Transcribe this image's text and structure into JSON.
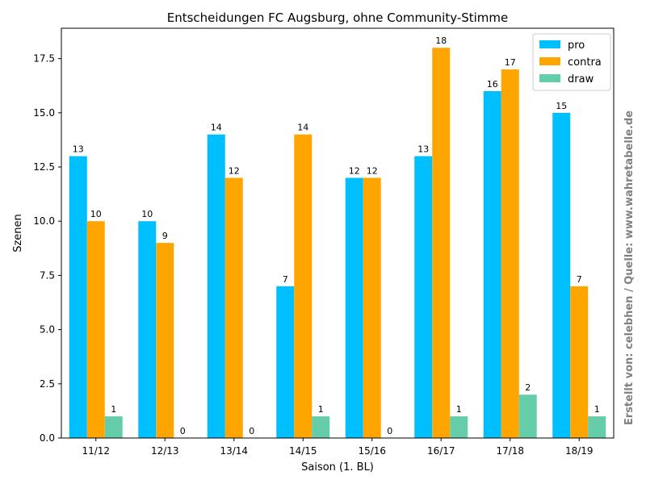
{
  "chart_data": {
    "type": "bar",
    "title": "Entscheidungen FC Augsburg, ohne Community-Stimme",
    "xlabel": "Saison (1. BL)",
    "ylabel": "Szenen",
    "ylim": [
      0,
      18.9
    ],
    "yticks": [
      "0.0",
      "2.5",
      "5.0",
      "7.5",
      "10.0",
      "12.5",
      "15.0",
      "17.5"
    ],
    "categories": [
      "11/12",
      "12/13",
      "13/14",
      "14/15",
      "15/16",
      "16/17",
      "17/18",
      "18/19"
    ],
    "series": [
      {
        "name": "pro",
        "color": "#00bfff",
        "values": [
          13,
          10,
          14,
          7,
          12,
          13,
          16,
          15
        ]
      },
      {
        "name": "contra",
        "color": "#ffa500",
        "values": [
          10,
          9,
          12,
          14,
          12,
          18,
          17,
          7
        ]
      },
      {
        "name": "draw",
        "color": "#66cdaa",
        "values": [
          1,
          0,
          0,
          1,
          0,
          1,
          2,
          1
        ]
      }
    ],
    "legend_position": "top-right",
    "grid": false,
    "watermark": "Erstellt von: celebhen / Quelle: www.wahretabelle.de"
  }
}
